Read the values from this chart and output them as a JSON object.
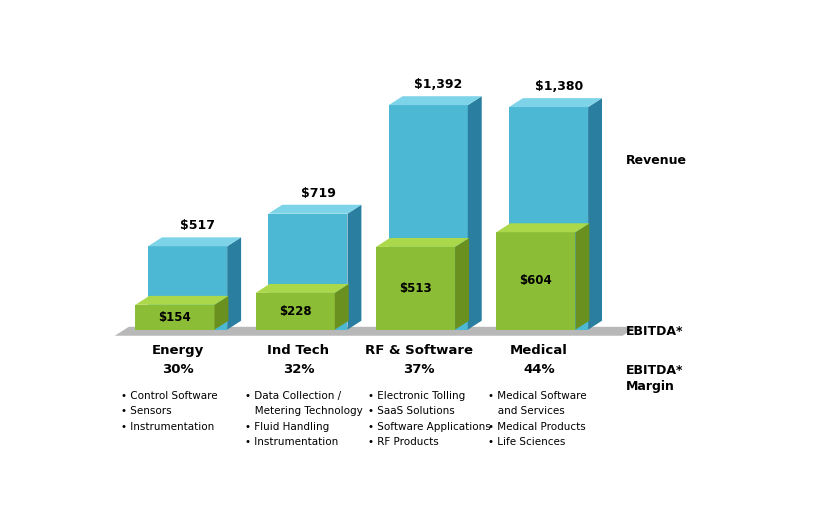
{
  "categories": [
    "Energy",
    "Ind Tech",
    "RF & Software",
    "Medical"
  ],
  "margins": [
    "30%",
    "32%",
    "37%",
    "44%"
  ],
  "revenue": [
    517,
    719,
    1392,
    1380
  ],
  "ebitda": [
    154,
    228,
    513,
    604
  ],
  "revenue_labels": [
    "$517",
    "$719",
    "$1,392",
    "$1,380"
  ],
  "ebitda_labels": [
    "$154",
    "$228",
    "$513",
    "$604"
  ],
  "blue_front": "#4db8d4",
  "blue_top": "#7dd4e8",
  "blue_side": "#2a7fa0",
  "green_front": "#8cbd36",
  "green_top": "#aad84a",
  "green_side": "#6a9020",
  "base_color": "#b8b8b8",
  "background_color": "#ffffff",
  "ylabel_revenue": "Revenue",
  "ylabel_ebitda": "EBITDA*",
  "ylabel_margin": "EBITDA*\nMargin",
  "bullet_lists": [
    [
      "Control Software",
      "Sensors",
      "Instrumentation"
    ],
    [
      "Data Collection /",
      "Metering Technology",
      "Fluid Handling",
      "Instrumentation"
    ],
    [
      "Electronic Tolling",
      "SaaS Solutions",
      "Software Applications",
      "RF Products"
    ],
    [
      "Medical Software",
      "and Services",
      "Medical Products",
      "Life Sciences"
    ]
  ],
  "bullet_has_bullet": [
    [
      true,
      true,
      true
    ],
    [
      true,
      false,
      true,
      true
    ],
    [
      true,
      true,
      true,
      true
    ],
    [
      true,
      false,
      true,
      true
    ]
  ],
  "max_val": 1500
}
